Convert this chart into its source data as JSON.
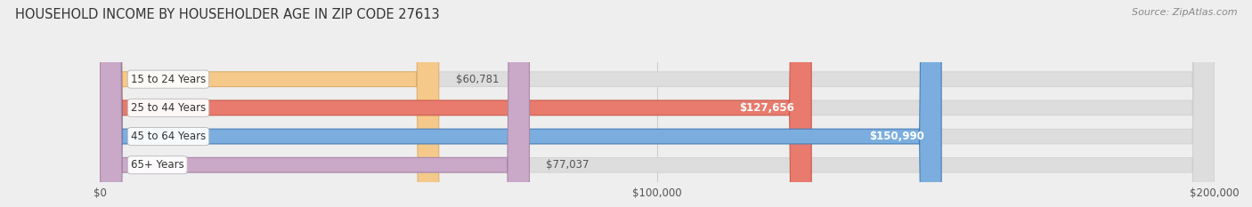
{
  "title": "HOUSEHOLD INCOME BY HOUSEHOLDER AGE IN ZIP CODE 27613",
  "source": "Source: ZipAtlas.com",
  "categories": [
    "15 to 24 Years",
    "25 to 44 Years",
    "45 to 64 Years",
    "65+ Years"
  ],
  "values": [
    60781,
    127656,
    150990,
    77037
  ],
  "bar_colors": [
    "#f5c98a",
    "#e87b6e",
    "#7baede",
    "#c9a8c8"
  ],
  "bar_edge_colors": [
    "#ddb070",
    "#cc5a4a",
    "#4a7eb8",
    "#a888a8"
  ],
  "label_colors": [
    "#555555",
    "#ffffff",
    "#ffffff",
    "#555555"
  ],
  "value_labels": [
    "$60,781",
    "$127,656",
    "$150,990",
    "$77,037"
  ],
  "x_max": 200000,
  "x_ticks": [
    0,
    100000,
    200000
  ],
  "x_tick_labels": [
    "$0",
    "$100,000",
    "$200,000"
  ],
  "background_color": "#eeeeee",
  "bar_bg_color": "#dddddd",
  "title_fontsize": 10.5,
  "source_fontsize": 8,
  "label_fontsize": 8.5,
  "value_fontsize": 8.5
}
